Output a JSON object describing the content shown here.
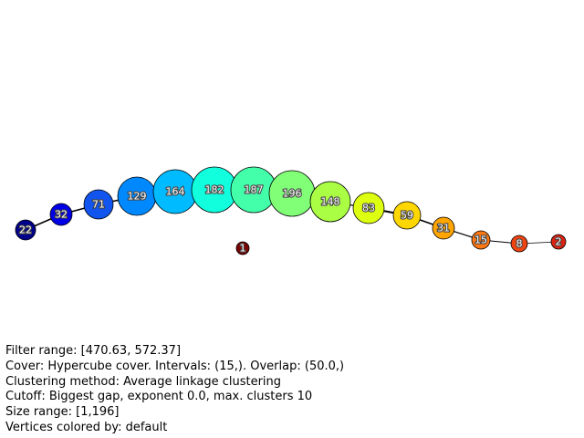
{
  "graph": {
    "nodes": [
      {
        "label": "22",
        "color": "#00008b"
      },
      {
        "label": "32",
        "color": "#0000e6"
      },
      {
        "label": "71",
        "color": "#1155ee"
      },
      {
        "label": "129",
        "color": "#0088ff"
      },
      {
        "label": "164",
        "color": "#00bbff"
      },
      {
        "label": "182",
        "color": "#11ffdd"
      },
      {
        "label": "187",
        "color": "#44ffaa"
      },
      {
        "label": "196",
        "color": "#80ff77"
      },
      {
        "label": "148",
        "color": "#aaff44"
      },
      {
        "label": "83",
        "color": "#ddff11"
      },
      {
        "label": "59",
        "color": "#ffd700"
      },
      {
        "label": "31",
        "color": "#ffa500"
      },
      {
        "label": "15",
        "color": "#ff7711"
      },
      {
        "label": "8",
        "color": "#ee4411"
      },
      {
        "label": "2",
        "color": "#dd2211"
      },
      {
        "label": "1",
        "color": "#7a0000"
      }
    ]
  },
  "info": {
    "filter_range": "Filter range: [470.63, 572.37]",
    "cover": "Cover: Hypercube cover. Intervals: (15,). Overlap: (50.0,)",
    "clustering": "Clustering method: Average linkage clustering",
    "cutoff": "Cutoff: Biggest gap, exponent 0.0, max. clusters 10",
    "size_range": "Size range: [1,196]",
    "colored_by": "Vertices colored by: default"
  }
}
